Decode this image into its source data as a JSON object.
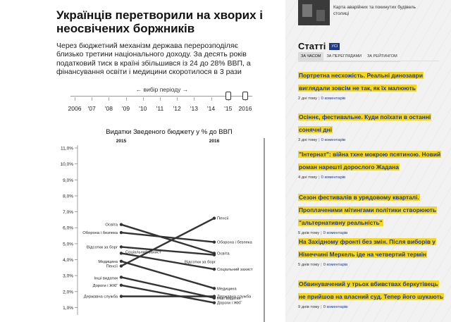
{
  "article": {
    "title": "Українців перетворили на хворих і неосвічених боржників",
    "lead": "Через бюджетний механізм держава перерозподіляє близько третини національного доходу. За десять років податковий тиск в країні збільшився із 24 до 28% ВВП, а фінансування освіти і медицини скоротилося в 3 рази"
  },
  "period_selector": {
    "caption": "← вибір періоду →",
    "years": [
      "2006",
      "'07",
      "'08",
      "'09",
      "'10",
      "'11",
      "'12",
      "'13",
      "'14",
      "'15",
      "2016"
    ],
    "selected_start": "'15",
    "selected_end": "2016"
  },
  "chart_data": {
    "type": "slope",
    "title": "Видатки Зведеного бюджету у % до ВВП",
    "x": [
      "2015",
      "2016"
    ],
    "y_ticks": [
      "11,0%",
      "10,0%",
      "9,0%",
      "8,0%",
      "7,0%",
      "6,0%",
      "5,0%",
      "4,0%",
      "3,0%",
      "2,0%",
      "1,0%"
    ],
    "ylim": [
      0.8,
      11.0
    ],
    "series": [
      {
        "name": "Пенсії",
        "values": [
          3.6,
          6.6
        ]
      },
      {
        "name": "Оборона і безпека",
        "values": [
          5.7,
          5.1
        ]
      },
      {
        "name": "Освіта",
        "values": [
          6.2,
          4.4
        ]
      },
      {
        "name": "Відсотки за борг",
        "values": [
          4.8,
          4.3
        ]
      },
      {
        "name": "Соціальний захист",
        "values": [
          4.4,
          3.4
        ]
      },
      {
        "name": "Медицина",
        "values": [
          3.9,
          2.2
        ]
      },
      {
        "name": "Інші видатки",
        "values": [
          2.9,
          1.6
        ]
      },
      {
        "name": "Дороги і ЖКГ",
        "values": [
          2.4,
          1.3
        ]
      },
      {
        "name": "Державна служба",
        "values": [
          1.7,
          1.7
        ]
      }
    ]
  },
  "sidebar": {
    "thumb_caption": "Карта аварійних та покинутих будівель столиці",
    "articles_title": "Статті",
    "articles_all": "УСІ",
    "tabs": [
      "ЗА ЧАСОМ",
      "ЗА ПЕРЕГЛЯДАМИ",
      "ЗА РЕЙТИНГОМ"
    ],
    "news": [
      {
        "title": "Портретна несхожість. Реальні динозаври виглядали зовсім не так, як їх малюють",
        "time": "2 дні тому",
        "comments": "0 коментарів"
      },
      {
        "title": "Осіннє, фестивальне. Куди поїхати в останні сонячні дні",
        "time": "3 дні тому",
        "comments": "0 коментарів"
      },
      {
        "title": "\"Інтернат\": війна тхне мокрою псятиною. Новий роман нарешті дорослого Жадана",
        "time": "4 дні тому",
        "comments": "0 коментарів"
      },
      {
        "title": "Сезон фестивалів в урядовому кварталі. Проплаченими мітингами політики створюють \"альтернативну реальність\"",
        "time": "5 днів тому",
        "comments": "0 коментарів"
      },
      {
        "title": "На Західному фронті без змін. Після виборів у Німеччині Меркель іде на четвертий термін",
        "time": "5 днів тому",
        "comments": "0 коментарів"
      },
      {
        "title": "Обвинувачений у трьох вбивствах беркутівець не прийшов на власний суд. Тепер його шукають",
        "time": "9 днів тому",
        "comments": "0 коментарів"
      }
    ]
  }
}
